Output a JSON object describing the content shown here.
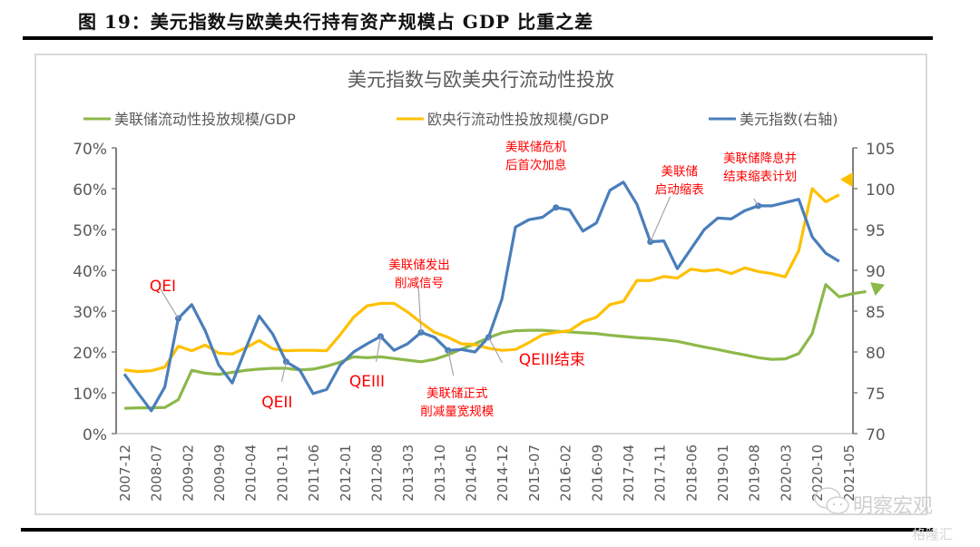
{
  "figure": {
    "caption": "图 19：美元指数与欧美央行持有资产规模占 GDP 比重之差",
    "watermark_main": "明察宏观",
    "watermark_corner": "格隆汇"
  },
  "chart_data": {
    "type": "line",
    "title": "美元指数与欧美央行流动性投放",
    "xlabel": "",
    "ylabel_left": "",
    "ylabel_right": "",
    "legend_position": "top",
    "grid": false,
    "x_tick_labels": [
      "2007-12",
      "2008-07",
      "2009-02",
      "2009-09",
      "2010-04",
      "2010-11",
      "2011-06",
      "2012-01",
      "2012-08",
      "2013-03",
      "2013-10",
      "2014-05",
      "2014-12",
      "2015-07",
      "2016-02",
      "2016-09",
      "2017-04",
      "2017-11",
      "2018-06",
      "2019-01",
      "2019-08",
      "2020-03",
      "2020-10",
      "2021-05"
    ],
    "x_start": "2007-12",
    "x_step_months": 3,
    "ylim_left": [
      0,
      70
    ],
    "yticks_left": [
      "0%",
      "10%",
      "20%",
      "30%",
      "40%",
      "50%",
      "60%",
      "70%"
    ],
    "ylim_right": [
      70,
      105
    ],
    "yticks_right": [
      "70",
      "75",
      "80",
      "85",
      "90",
      "95",
      "100",
      "105"
    ],
    "series": [
      {
        "name": "美联储流动性投放规模/GDP",
        "axis": "left",
        "color": "#8db84a",
        "unit": "%",
        "values": [
          6.2,
          6.3,
          6.3,
          6.4,
          8.3,
          15.5,
          14.8,
          14.5,
          15.0,
          15.5,
          15.8,
          16.0,
          16.0,
          15.6,
          15.8,
          16.5,
          17.5,
          18.8,
          18.6,
          18.8,
          18.4,
          18.0,
          17.6,
          18.2,
          19.3,
          20.7,
          22.0,
          23.5,
          24.7,
          25.2,
          25.3,
          25.3,
          25.1,
          24.9,
          24.7,
          24.5,
          24.1,
          23.8,
          23.5,
          23.3,
          23.0,
          22.6,
          21.9,
          21.2,
          20.6,
          19.9,
          19.3,
          18.6,
          18.2,
          18.3,
          19.6,
          24.5,
          36.5,
          33.5,
          34.3,
          34.8
        ],
        "projection": {
          "to_value": 36.5,
          "style": "dashed-arrow"
        }
      },
      {
        "name": "欧央行流动性投放规模/GDP",
        "axis": "left",
        "color": "#ffc000",
        "unit": "%",
        "values": [
          15.6,
          15.2,
          15.4,
          16.3,
          21.4,
          20.3,
          21.7,
          19.7,
          19.5,
          21.0,
          22.8,
          20.8,
          20.3,
          20.4,
          20.4,
          20.3,
          24.2,
          28.5,
          31.3,
          31.9,
          31.9,
          29.8,
          27.2,
          24.8,
          23.6,
          22.0,
          21.8,
          20.9,
          20.4,
          20.6,
          22.3,
          24.2,
          24.8,
          25.2,
          27.4,
          28.5,
          31.6,
          32.4,
          37.5,
          37.5,
          38.5,
          38.1,
          40.3,
          39.8,
          40.2,
          39.2,
          40.6,
          39.7,
          39.2,
          38.4,
          44.8,
          60.0,
          56.8,
          58.5
        ],
        "projection": {
          "to_value": 64.0,
          "style": "dashed-arrow"
        }
      },
      {
        "name": "美元指数(右轴)",
        "axis": "right",
        "color": "#4a7ebb",
        "unit": "",
        "values": [
          77.3,
          75.0,
          72.8,
          75.7,
          84.1,
          85.8,
          82.6,
          78.4,
          76.2,
          80.4,
          84.4,
          82.2,
          78.8,
          77.8,
          74.9,
          75.4,
          78.4,
          80.0,
          81.0,
          81.9,
          80.2,
          81.0,
          82.4,
          81.8,
          80.2,
          80.3,
          80.0,
          81.8,
          86.5,
          95.3,
          96.2,
          96.5,
          97.7,
          97.4,
          94.8,
          95.8,
          99.8,
          100.8,
          98.1,
          93.5,
          93.6,
          90.2,
          92.6,
          95.0,
          96.4,
          96.3,
          97.3,
          97.9,
          97.9,
          98.3,
          98.7,
          94.1,
          92.1,
          91.1
        ]
      }
    ],
    "annotations": [
      {
        "text": "QEI",
        "series": 2,
        "index": 4
      },
      {
        "text": "QEII",
        "series": 2,
        "index": 12
      },
      {
        "text": "QEIII",
        "series": 2,
        "index": 19
      },
      {
        "text": "美联储发出\n削减信号",
        "series": 2,
        "index": 22
      },
      {
        "text": "美联储正式\n削减量宽规模",
        "series": 2,
        "index": 24
      },
      {
        "text": "QEIII结束",
        "series": 2,
        "index": 27
      },
      {
        "text": "美联储危机\n后首次加息",
        "series": 2,
        "index": 32
      },
      {
        "text": "美联储\n启动缩表",
        "series": 2,
        "index": 39
      },
      {
        "text": "美联储降息并\n结束缩表计划",
        "series": 2,
        "index": 47
      }
    ]
  }
}
